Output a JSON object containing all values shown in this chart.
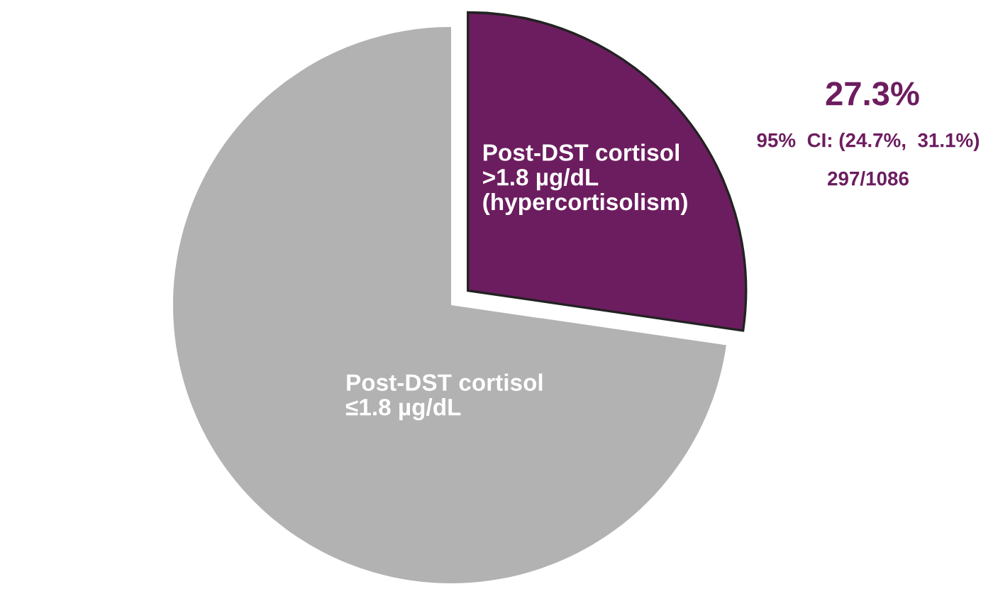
{
  "chart_data": {
    "type": "pie",
    "categories": [
      "Post-DST cortisol\n>1.8 µg/dL\n(hypercortisolism)",
      "Post-DST cortisol\n≤1.8 µg/dL"
    ],
    "values": [
      27.3,
      72.7
    ],
    "colors": [
      "#6c1d5f",
      "#b2b2b2"
    ],
    "value_labels": [
      "27.3%",
      null
    ],
    "annotations": [
      "95%  CI: (24.7%,  31.1%)",
      "297/1086"
    ],
    "legend": false
  }
}
